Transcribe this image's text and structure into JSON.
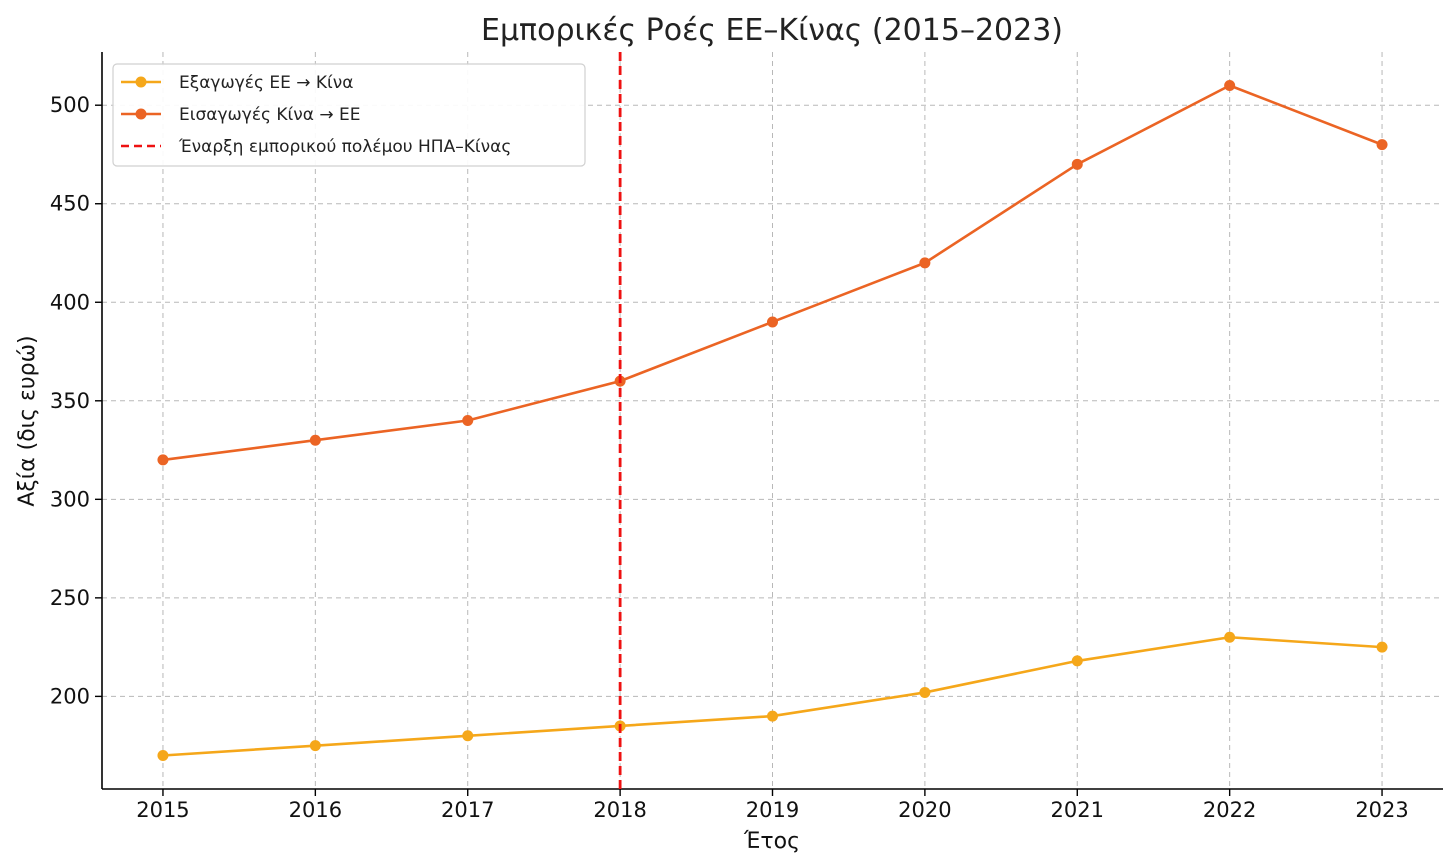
{
  "chart_data": {
    "type": "line",
    "title": "Εμπορικές Ροές ΕΕ–Κίνας (2015–2023)",
    "xlabel": "Έτος",
    "ylabel": "Αξία (δις ευρώ)",
    "x": [
      2015,
      2016,
      2017,
      2018,
      2019,
      2020,
      2021,
      2022,
      2023
    ],
    "x_tick_labels": [
      "2015",
      "2016",
      "2017",
      "2018",
      "2019",
      "2020",
      "2021",
      "2022",
      "2023"
    ],
    "xlim": [
      2014.6,
      2023.4
    ],
    "ylim": [
      153,
      527
    ],
    "y_ticks": [
      200,
      250,
      300,
      350,
      400,
      450,
      500
    ],
    "y_tick_labels": [
      "200",
      "250",
      "300",
      "350",
      "400",
      "450",
      "500"
    ],
    "grid": true,
    "legend_position": "top-left",
    "series": [
      {
        "name": "Εξαγωγές ΕΕ → Κίνα",
        "color": "#f5a71a",
        "values": [
          170,
          175,
          180,
          185,
          190,
          202,
          218,
          230,
          225
        ]
      },
      {
        "name": "Εισαγωγές Κίνα → ΕΕ",
        "color": "#eb6424",
        "values": [
          320,
          330,
          340,
          360,
          390,
          420,
          470,
          510,
          480
        ]
      }
    ],
    "annotations": [
      {
        "type": "vline",
        "x": 2018,
        "label": "Έναρξη εμπορικού πολέμου ΗΠΑ–Κίνας",
        "color": "#ee1111"
      }
    ]
  }
}
